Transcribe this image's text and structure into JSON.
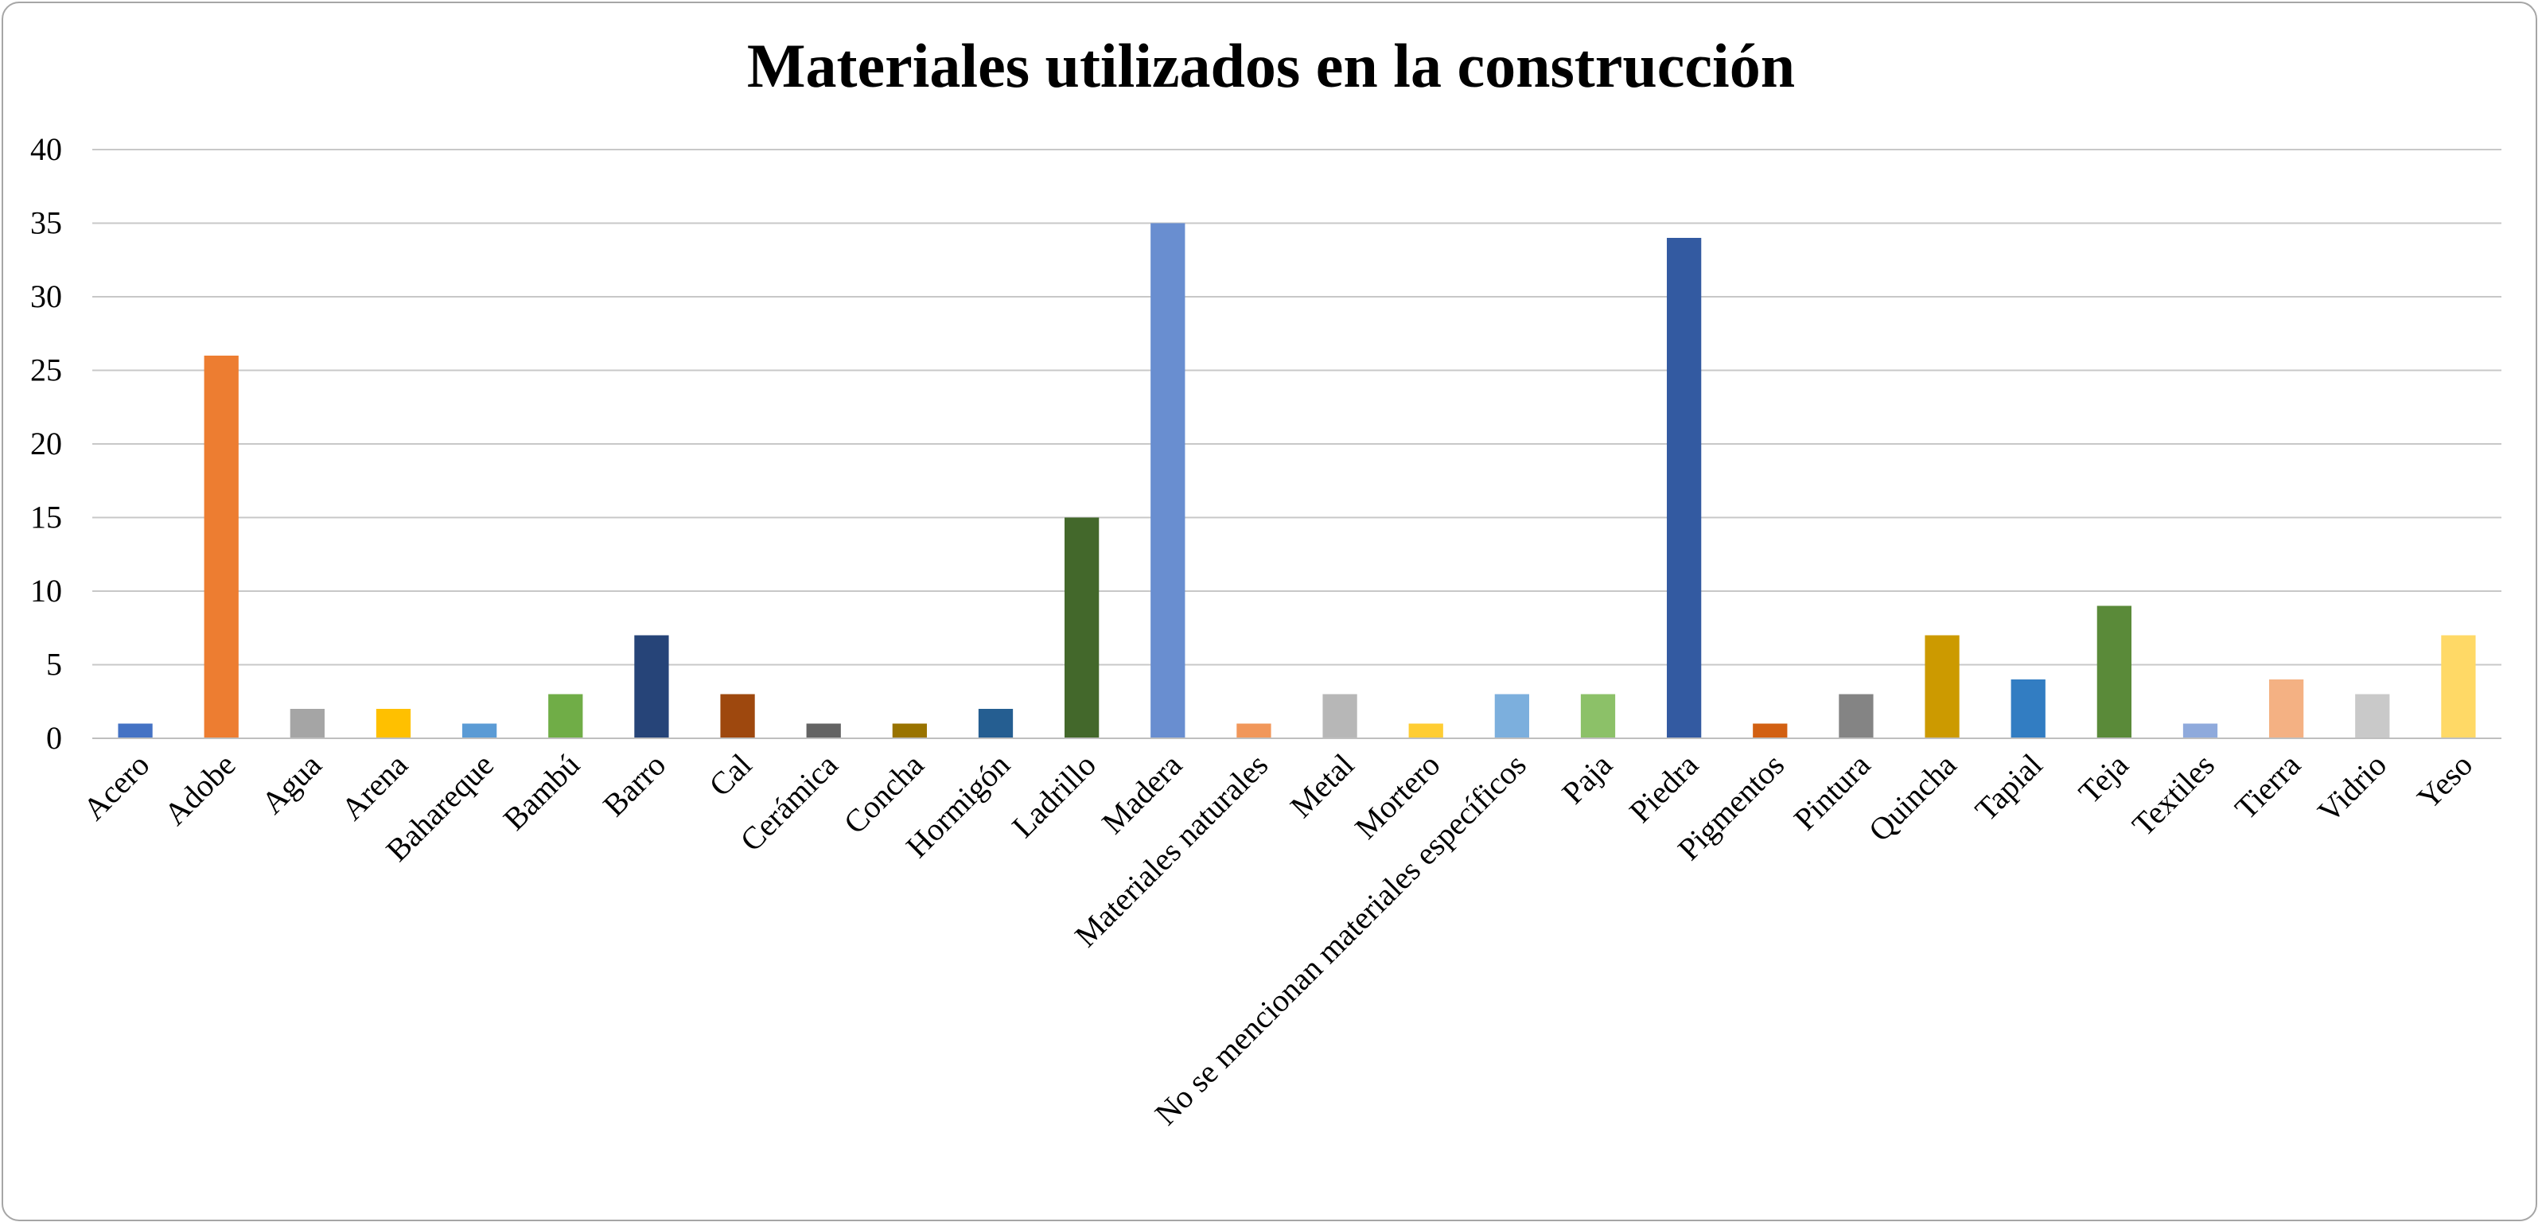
{
  "chart_data": {
    "type": "bar",
    "title": "Materiales utilizados en la construcción",
    "xlabel": "",
    "ylabel": "",
    "ylim": [
      0,
      40
    ],
    "yticks": [
      0,
      5,
      10,
      15,
      20,
      25,
      30,
      35,
      40
    ],
    "grid": true,
    "legend": "none",
    "categories": [
      "Acero",
      "Adobe",
      "Agua",
      "Arena",
      "Bahareque",
      "Bambú",
      "Barro",
      "Cal",
      "Cerámica",
      "Concha",
      "Hormigón",
      "Ladrillo",
      "Madera",
      "Materiales naturales",
      "Metal",
      "Mortero",
      "No se mencionan materiales específicos",
      "Paja",
      "Piedra",
      "Pigmentos",
      "Pintura",
      "Quincha",
      "Tapial",
      "Teja",
      "Textiles",
      "Tierra",
      "Vidrio",
      "Yeso"
    ],
    "values": [
      1,
      26,
      2,
      2,
      1,
      3,
      7,
      3,
      1,
      1,
      2,
      15,
      35,
      1,
      3,
      1,
      3,
      3,
      34,
      1,
      3,
      7,
      4,
      9,
      1,
      4,
      3,
      7
    ],
    "colors": [
      "#4472c4",
      "#ed7d31",
      "#a5a5a5",
      "#ffc000",
      "#5b9bd5",
      "#70ad47",
      "#264478",
      "#9e480e",
      "#636363",
      "#997300",
      "#255e91",
      "#43682b",
      "#698ed0",
      "#f1975a",
      "#b7b7b7",
      "#ffcd33",
      "#7cafdd",
      "#8cc168",
      "#335aa1",
      "#d26012",
      "#848484",
      "#cc9a00",
      "#327dc2",
      "#5a8a39",
      "#8faadc",
      "#f4b183",
      "#c9c9c9",
      "#ffd966"
    ]
  }
}
